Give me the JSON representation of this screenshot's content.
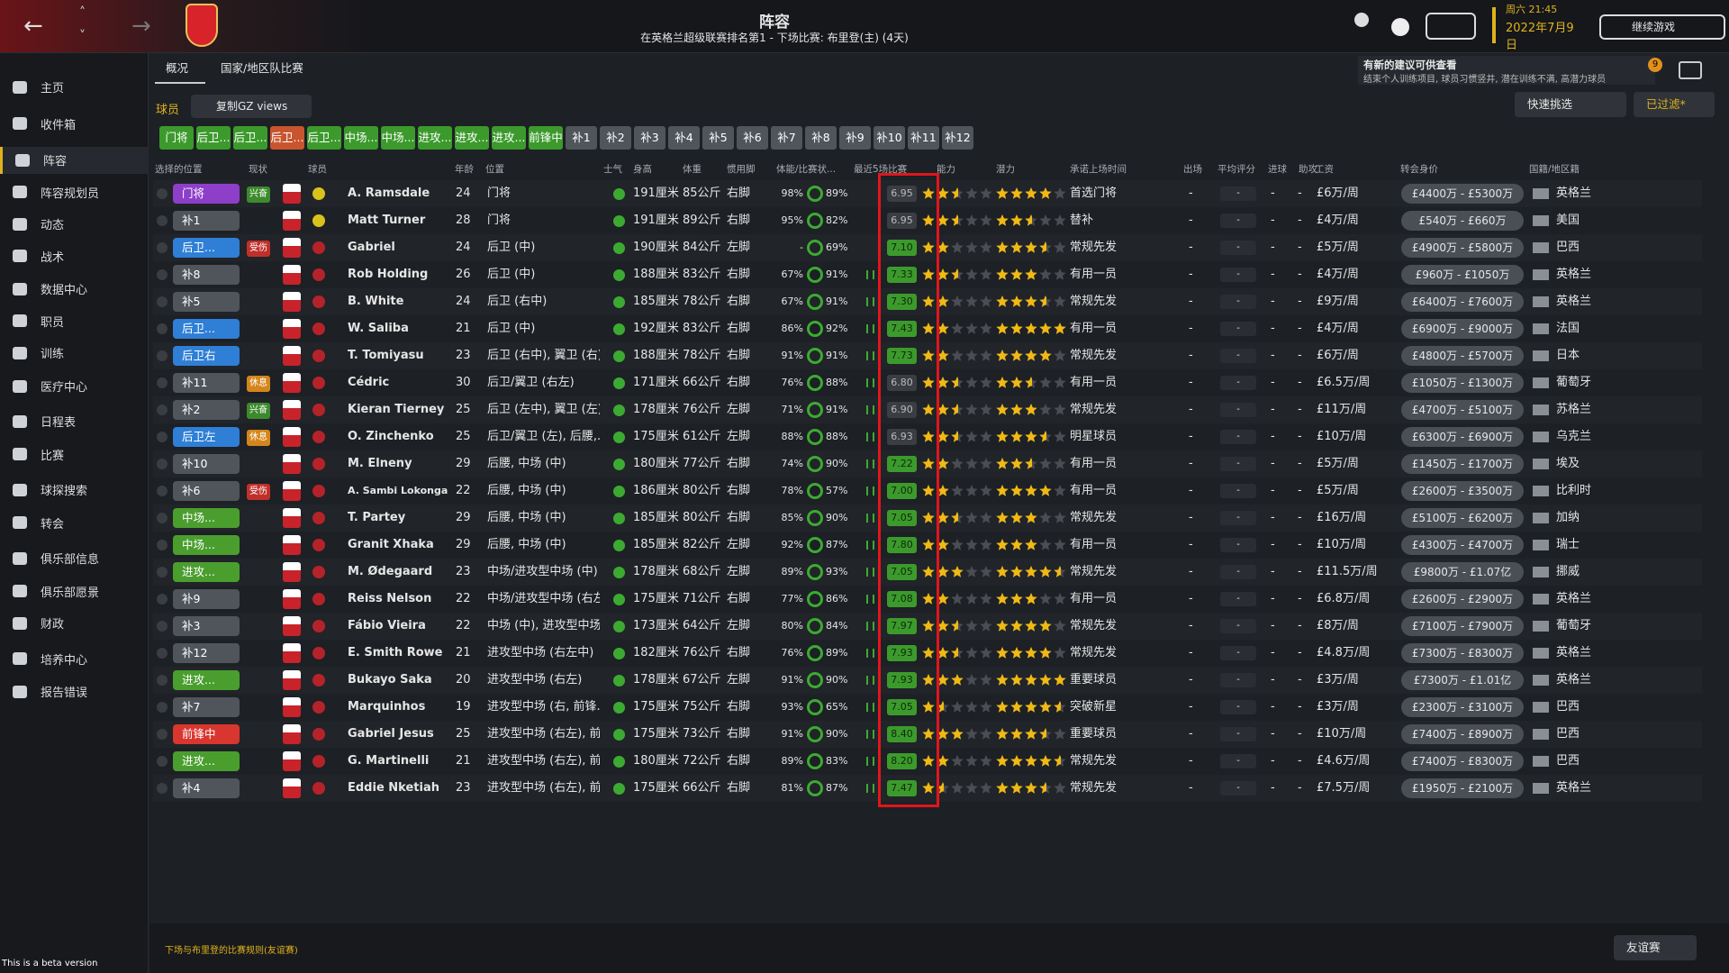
{
  "header": {
    "title": "阵容",
    "subtitle": "在英格兰超级联赛排名第1 - 下场比赛: 布里登(主) (4天)",
    "time": "周六 21:45",
    "date": "2022年7月9日",
    "continue": "继续游戏"
  },
  "sidebar": [
    "主页",
    "收件箱",
    "阵容",
    "阵容规划员",
    "动态",
    "战术",
    "数据中心",
    "职员",
    "训练",
    "医疗中心",
    "日程表",
    "比赛",
    "球探搜索",
    "转会",
    "俱乐部信息",
    "俱乐部愿景",
    "财政",
    "培养中心",
    "报告错误"
  ],
  "tabs": [
    "概况",
    "国家/地区队比赛"
  ],
  "notice": {
    "title": "有新的建议可供查看",
    "text": "结束个人训练项目, 球员习惯竖井, 潜在训练不满, 高潜力球员",
    "count": "9"
  },
  "toolbar": {
    "label": "球员",
    "view": "复制GZ views",
    "quick": "快速挑选",
    "filter": "已过滤*"
  },
  "formation_buttons": [
    {
      "label": "门将",
      "color": "#3c9a2c"
    },
    {
      "label": "后卫...",
      "color": "#3c9a2c"
    },
    {
      "label": "后卫...",
      "color": "#3c9a2c"
    },
    {
      "label": "后卫...",
      "color": "#c8552e"
    },
    {
      "label": "后卫...",
      "color": "#3c9a2c"
    },
    {
      "label": "中场...",
      "color": "#3c9a2c"
    },
    {
      "label": "中场...",
      "color": "#3c9a2c"
    },
    {
      "label": "进攻...",
      "color": "#3c9a2c"
    },
    {
      "label": "进攻...",
      "color": "#3c9a2c"
    },
    {
      "label": "进攻...",
      "color": "#3c9a2c"
    },
    {
      "label": "前锋中",
      "color": "#3c9a2c"
    },
    {
      "label": "补1",
      "color": "#50555c"
    },
    {
      "label": "补2",
      "color": "#50555c"
    },
    {
      "label": "补3",
      "color": "#50555c"
    },
    {
      "label": "补4",
      "color": "#50555c"
    },
    {
      "label": "补5",
      "color": "#50555c"
    },
    {
      "label": "补6",
      "color": "#50555c"
    },
    {
      "label": "补7",
      "color": "#50555c"
    },
    {
      "label": "补8",
      "color": "#50555c"
    },
    {
      "label": "补9",
      "color": "#50555c"
    },
    {
      "label": "补10",
      "color": "#50555c"
    },
    {
      "label": "补11",
      "color": "#50555c"
    },
    {
      "label": "补12",
      "color": "#50555c"
    }
  ],
  "columns": [
    "选择的位置",
    "现状",
    "球员",
    "年龄",
    "位置",
    "士气",
    "身高",
    "体重",
    "惯用脚",
    "体能/比赛状...",
    "最近5场比赛",
    "能力",
    "潜力",
    "承诺上场时间",
    "出场",
    "平均评分",
    "进球",
    "助攻",
    "工资",
    "转会身价",
    "国籍/地区籍"
  ],
  "rows": [
    {
      "sel": "门将",
      "sel_color": "#8e3fc9",
      "status": "兴奋",
      "status_color": "#3c8a2c",
      "name": "A. Ramsdale",
      "age": "24",
      "position": "门将",
      "height": "191厘米",
      "weight": "85公斤",
      "foot": "右脚",
      "fitness": "98%",
      "sharpness": "89%",
      "rating": "6.95",
      "ability": 2.5,
      "potential": 4,
      "playing_time": "首选门将",
      "apps": "-",
      "avg_rating": "-",
      "goals": "-",
      "assists": "-",
      "wage": "£6万/周",
      "value": "£4400万 - £5300万",
      "nation": "英格兰"
    },
    {
      "sel": "补1",
      "sel_color": "#50555c",
      "name": "Matt Turner",
      "age": "28",
      "position": "门将",
      "height": "191厘米",
      "weight": "89公斤",
      "foot": "右脚",
      "fitness": "95%",
      "sharpness": "82%",
      "rating": "6.95",
      "ability": 2.5,
      "potential": 2.5,
      "playing_time": "替补",
      "apps": "-",
      "avg_rating": "-",
      "goals": "-",
      "assists": "-",
      "wage": "£4万/周",
      "value": "£540万 - £660万",
      "nation": "美国"
    },
    {
      "sel": "后卫...",
      "sel_color": "#2f7fd6",
      "status": "受伤",
      "status_color": "#c0302a",
      "name": "Gabriel",
      "age": "24",
      "position": "后卫 (中)",
      "height": "190厘米",
      "weight": "84公斤",
      "foot": "左脚",
      "fitness": "-",
      "sharpness": "69%",
      "rating": "7.10",
      "ability": 2,
      "potential": 3.5,
      "playing_time": "常规先发",
      "apps": "-",
      "avg_rating": "-",
      "goals": "-",
      "assists": "-",
      "wage": "£5万/周",
      "value": "£4900万 - £5800万",
      "nation": "巴西"
    },
    {
      "sel": "补8",
      "sel_color": "#50555c",
      "name": "Rob Holding",
      "age": "26",
      "position": "后卫 (中)",
      "height": "188厘米",
      "weight": "83公斤",
      "foot": "右脚",
      "fitness": "67%",
      "sharpness": "91%",
      "rating": "7.33",
      "ability": 2.5,
      "potential": 3,
      "playing_time": "有用一员",
      "apps": "-",
      "avg_rating": "-",
      "goals": "-",
      "assists": "-",
      "wage": "£4万/周",
      "value": "£960万 - £1050万",
      "nation": "英格兰"
    },
    {
      "sel": "补5",
      "sel_color": "#50555c",
      "name": "B. White",
      "age": "24",
      "position": "后卫 (右中)",
      "height": "185厘米",
      "weight": "78公斤",
      "foot": "右脚",
      "fitness": "67%",
      "sharpness": "91%",
      "rating": "7.30",
      "ability": 2,
      "potential": 3.5,
      "playing_time": "常规先发",
      "apps": "-",
      "avg_rating": "-",
      "goals": "-",
      "assists": "-",
      "wage": "£9万/周",
      "value": "£6400万 - £7600万",
      "nation": "英格兰"
    },
    {
      "sel": "后卫...",
      "sel_color": "#2f7fd6",
      "name": "W. Saliba",
      "age": "21",
      "position": "后卫 (中)",
      "height": "192厘米",
      "weight": "83公斤",
      "foot": "右脚",
      "fitness": "86%",
      "sharpness": "92%",
      "rating": "7.43",
      "ability": 2,
      "potential": 5,
      "playing_time": "有用一员",
      "apps": "-",
      "avg_rating": "-",
      "goals": "-",
      "assists": "-",
      "wage": "£4万/周",
      "value": "£6900万 - £9000万",
      "nation": "法国"
    },
    {
      "sel": "后卫右",
      "sel_color": "#2f7fd6",
      "name": "T. Tomiyasu",
      "age": "23",
      "position": "后卫 (右中), 翼卫 (右)",
      "height": "188厘米",
      "weight": "78公斤",
      "foot": "右脚",
      "fitness": "91%",
      "sharpness": "91%",
      "rating": "7.73",
      "ability": 2,
      "potential": 4,
      "playing_time": "常规先发",
      "apps": "-",
      "avg_rating": "-",
      "goals": "-",
      "assists": "-",
      "wage": "£6万/周",
      "value": "£4800万 - £5700万",
      "nation": "日本"
    },
    {
      "sel": "补11",
      "sel_color": "#50555c",
      "status": "休息",
      "status_color": "#d4861c",
      "name": "Cédric",
      "age": "30",
      "position": "后卫/翼卫 (右左)",
      "height": "171厘米",
      "weight": "66公斤",
      "foot": "右脚",
      "fitness": "76%",
      "sharpness": "88%",
      "rating": "6.80",
      "ability": 2.5,
      "potential": 2.5,
      "playing_time": "有用一员",
      "apps": "-",
      "avg_rating": "-",
      "goals": "-",
      "assists": "-",
      "wage": "£6.5万/周",
      "value": "£1050万 - £1300万",
      "nation": "葡萄牙"
    },
    {
      "sel": "补2",
      "sel_color": "#50555c",
      "status": "兴奋",
      "status_color": "#3c8a2c",
      "name": "Kieran Tierney",
      "age": "25",
      "position": "后卫 (左中), 翼卫 (左)",
      "height": "178厘米",
      "weight": "76公斤",
      "foot": "左脚",
      "fitness": "71%",
      "sharpness": "91%",
      "rating": "6.90",
      "ability": 2.5,
      "potential": 3,
      "playing_time": "常规先发",
      "apps": "-",
      "avg_rating": "-",
      "goals": "-",
      "assists": "-",
      "wage": "£11万/周",
      "value": "£4700万 - £5100万",
      "nation": "苏格兰"
    },
    {
      "sel": "后卫左",
      "sel_color": "#2f7fd6",
      "status": "休息",
      "status_color": "#d4861c",
      "name": "O. Zinchenko",
      "age": "25",
      "position": "后卫/翼卫 (左), 后腰,...",
      "height": "175厘米",
      "weight": "61公斤",
      "foot": "左脚",
      "fitness": "88%",
      "sharpness": "88%",
      "rating": "6.93",
      "ability": 2.5,
      "potential": 3.5,
      "playing_time": "明星球员",
      "apps": "-",
      "avg_rating": "-",
      "goals": "-",
      "assists": "-",
      "wage": "£10万/周",
      "value": "£6300万 - £6900万",
      "nation": "乌克兰"
    },
    {
      "sel": "补10",
      "sel_color": "#50555c",
      "name": "M. Elneny",
      "age": "29",
      "position": "后腰, 中场 (中)",
      "height": "180厘米",
      "weight": "77公斤",
      "foot": "右脚",
      "fitness": "74%",
      "sharpness": "90%",
      "rating": "7.22",
      "ability": 2,
      "potential": 2.5,
      "playing_time": "有用一员",
      "apps": "-",
      "avg_rating": "-",
      "goals": "-",
      "assists": "-",
      "wage": "£5万/周",
      "value": "£1450万 - £1700万",
      "nation": "埃及"
    },
    {
      "sel": "补6",
      "sel_color": "#50555c",
      "status": "受伤",
      "status_color": "#c0302a",
      "name": "A. Sambi Lokonga",
      "age": "22",
      "position": "后腰, 中场 (中)",
      "height": "186厘米",
      "weight": "80公斤",
      "foot": "右脚",
      "fitness": "78%",
      "sharpness": "57%",
      "rating": "7.00",
      "ability": 2,
      "potential": 4,
      "playing_time": "有用一员",
      "apps": "-",
      "avg_rating": "-",
      "goals": "-",
      "assists": "-",
      "wage": "£5万/周",
      "value": "£2600万 - £3500万",
      "nation": "比利时"
    },
    {
      "sel": "中场...",
      "sel_color": "#4a9e2e",
      "name": "T. Partey",
      "age": "29",
      "position": "后腰, 中场 (中)",
      "height": "185厘米",
      "weight": "80公斤",
      "foot": "右脚",
      "fitness": "85%",
      "sharpness": "90%",
      "rating": "7.05",
      "ability": 2.5,
      "potential": 3,
      "playing_time": "常规先发",
      "apps": "-",
      "avg_rating": "-",
      "goals": "-",
      "assists": "-",
      "wage": "£16万/周",
      "value": "£5100万 - £6200万",
      "nation": "加纳"
    },
    {
      "sel": "中场...",
      "sel_color": "#4a9e2e",
      "name": "Granit Xhaka",
      "age": "29",
      "position": "后腰, 中场 (中)",
      "height": "185厘米",
      "weight": "82公斤",
      "foot": "左脚",
      "fitness": "92%",
      "sharpness": "87%",
      "rating": "7.80",
      "ability": 2,
      "potential": 3,
      "playing_time": "有用一员",
      "apps": "-",
      "avg_rating": "-",
      "goals": "-",
      "assists": "-",
      "wage": "£10万/周",
      "value": "£4300万 - £4700万",
      "nation": "瑞士"
    },
    {
      "sel": "进攻...",
      "sel_color": "#4a9e2e",
      "name": "M. Ødegaard",
      "age": "23",
      "position": "中场/进攻型中场 (中)",
      "height": "178厘米",
      "weight": "68公斤",
      "foot": "左脚",
      "fitness": "89%",
      "sharpness": "93%",
      "rating": "7.05",
      "ability": 3,
      "potential": 4.5,
      "playing_time": "常规先发",
      "apps": "-",
      "avg_rating": "-",
      "goals": "-",
      "assists": "-",
      "wage": "£11.5万/周",
      "value": "£9800万 - £1.07亿",
      "nation": "挪威"
    },
    {
      "sel": "补9",
      "sel_color": "#50555c",
      "name": "Reiss Nelson",
      "age": "22",
      "position": "中场/进攻型中场 (右左)",
      "height": "175厘米",
      "weight": "71公斤",
      "foot": "右脚",
      "fitness": "77%",
      "sharpness": "86%",
      "rating": "7.08",
      "ability": 2,
      "potential": 3,
      "playing_time": "有用一员",
      "apps": "-",
      "avg_rating": "-",
      "goals": "-",
      "assists": "-",
      "wage": "£6.8万/周",
      "value": "£2600万 - £2900万",
      "nation": "英格兰"
    },
    {
      "sel": "补3",
      "sel_color": "#50555c",
      "name": "Fábio Vieira",
      "age": "22",
      "position": "中场 (中), 进攻型中场...",
      "height": "173厘米",
      "weight": "64公斤",
      "foot": "左脚",
      "fitness": "80%",
      "sharpness": "84%",
      "rating": "7.97",
      "ability": 2.5,
      "potential": 4,
      "playing_time": "常规先发",
      "apps": "-",
      "avg_rating": "-",
      "goals": "-",
      "assists": "-",
      "wage": "£8万/周",
      "value": "£7100万 - £7900万",
      "nation": "葡萄牙"
    },
    {
      "sel": "补12",
      "sel_color": "#50555c",
      "name": "E. Smith Rowe",
      "age": "21",
      "position": "进攻型中场 (右左中)",
      "height": "182厘米",
      "weight": "76公斤",
      "foot": "右脚",
      "fitness": "76%",
      "sharpness": "89%",
      "rating": "7.93",
      "ability": 2.5,
      "potential": 4,
      "playing_time": "常规先发",
      "apps": "-",
      "avg_rating": "-",
      "goals": "-",
      "assists": "-",
      "wage": "£4.8万/周",
      "value": "£7300万 - £8300万",
      "nation": "英格兰"
    },
    {
      "sel": "进攻...",
      "sel_color": "#4a9e2e",
      "name": "Bukayo Saka",
      "age": "20",
      "position": "进攻型中场 (右左)",
      "height": "178厘米",
      "weight": "67公斤",
      "foot": "左脚",
      "fitness": "91%",
      "sharpness": "90%",
      "rating": "7.93",
      "ability": 3,
      "potential": 5,
      "playing_time": "重要球员",
      "apps": "-",
      "avg_rating": "-",
      "goals": "-",
      "assists": "-",
      "wage": "£3万/周",
      "value": "£7300万 - £1.01亿",
      "nation": "英格兰"
    },
    {
      "sel": "补7",
      "sel_color": "#50555c",
      "name": "Marquinhos",
      "age": "19",
      "position": "进攻型中场 (右, 前锋...",
      "height": "175厘米",
      "weight": "75公斤",
      "foot": "右脚",
      "fitness": "93%",
      "sharpness": "65%",
      "rating": "7.05",
      "ability": 1.5,
      "potential": 4.5,
      "playing_time": "突破新星",
      "apps": "-",
      "avg_rating": "-",
      "goals": "-",
      "assists": "-",
      "wage": "£3万/周",
      "value": "£2300万 - £3100万",
      "nation": "巴西"
    },
    {
      "sel": "前锋中",
      "sel_color": "#d8362f",
      "name": "Gabriel Jesus",
      "age": "25",
      "position": "进攻型中场 (右左), 前...",
      "height": "175厘米",
      "weight": "73公斤",
      "foot": "右脚",
      "fitness": "91%",
      "sharpness": "90%",
      "rating": "8.40",
      "ability": 3,
      "potential": 3.5,
      "playing_time": "重要球员",
      "apps": "-",
      "avg_rating": "-",
      "goals": "-",
      "assists": "-",
      "wage": "£10万/周",
      "value": "£7400万 - £8900万",
      "nation": "巴西"
    },
    {
      "sel": "进攻...",
      "sel_color": "#4a9e2e",
      "name": "G. Martinelli",
      "age": "21",
      "position": "进攻型中场 (右左), 前...",
      "height": "180厘米",
      "weight": "72公斤",
      "foot": "右脚",
      "fitness": "89%",
      "sharpness": "83%",
      "rating": "8.20",
      "ability": 2,
      "potential": 4.5,
      "playing_time": "常规先发",
      "apps": "-",
      "avg_rating": "-",
      "goals": "-",
      "assists": "-",
      "wage": "£4.6万/周",
      "value": "£7400万 - £8300万",
      "nation": "巴西"
    },
    {
      "sel": "补4",
      "sel_color": "#50555c",
      "name": "Eddie Nketiah",
      "age": "23",
      "position": "进攻型中场 (右左), 前...",
      "height": "175厘米",
      "weight": "66公斤",
      "foot": "右脚",
      "fitness": "81%",
      "sharpness": "87%",
      "rating": "7.47",
      "ability": 1.5,
      "potential": 3.5,
      "playing_time": "常规先发",
      "apps": "-",
      "avg_rating": "-",
      "goals": "-",
      "assists": "-",
      "wage": "£7.5万/周",
      "value": "£1950万 - £2100万",
      "nation": "英格兰"
    }
  ],
  "footer": {
    "note": "下场与布里登的比赛规则(友谊赛)",
    "match_type": "友谊赛",
    "beta": "This is a beta version"
  }
}
